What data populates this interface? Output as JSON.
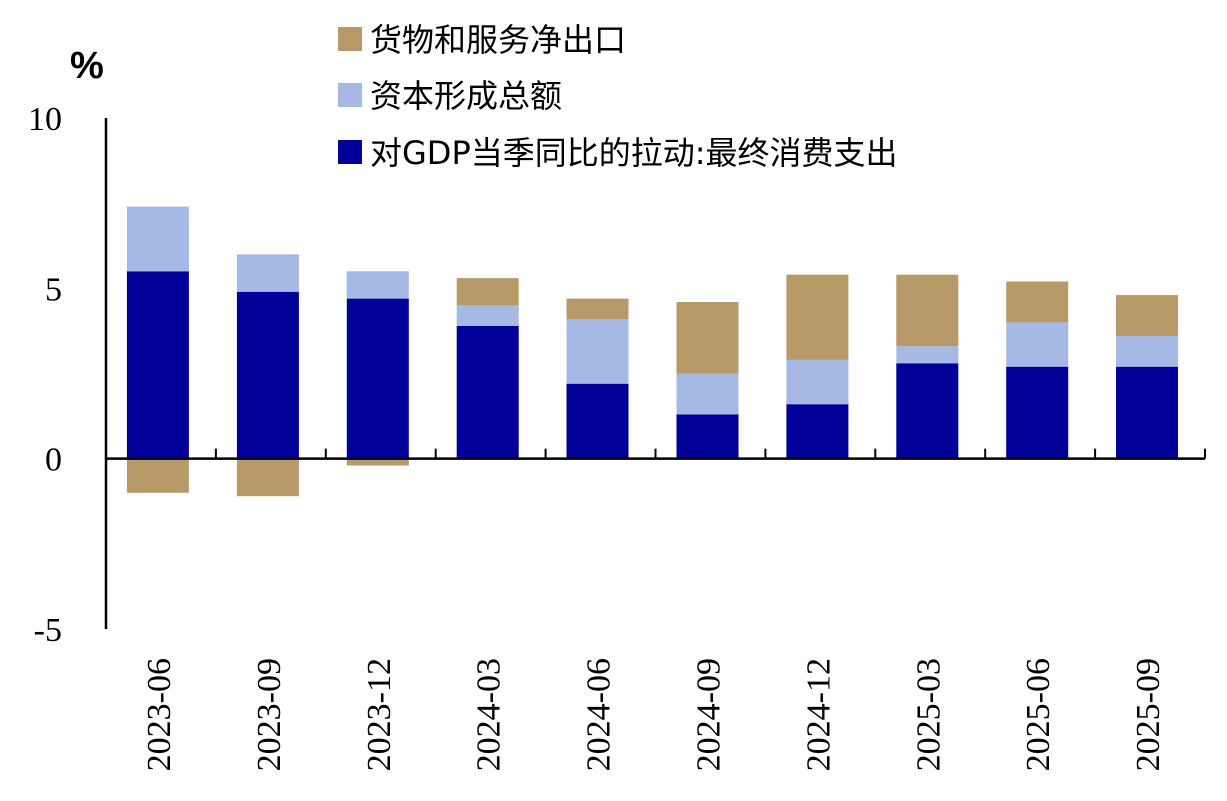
{
  "chart_data": {
    "type": "bar",
    "stacked": true,
    "unit_label": "%",
    "categories": [
      "2023-06",
      "2023-09",
      "2023-12",
      "2024-03",
      "2024-06",
      "2024-09",
      "2024-12",
      "2025-03",
      "2025-06",
      "2025-09"
    ],
    "series": [
      {
        "name": "对GDP当季同比的拉动:最终消费支出",
        "color": "#000099",
        "values": [
          5.5,
          4.9,
          4.7,
          3.9,
          2.2,
          1.3,
          1.6,
          2.8,
          2.7,
          2.7
        ]
      },
      {
        "name": "资本形成总额",
        "color": "#a6b8e4",
        "values": [
          1.9,
          1.1,
          0.8,
          0.6,
          1.9,
          1.2,
          1.3,
          0.5,
          1.3,
          0.9
        ]
      },
      {
        "name": "货物和服务净出口",
        "color": "#b89968",
        "values": [
          -1.0,
          -1.1,
          -0.2,
          0.8,
          0.6,
          2.1,
          2.5,
          2.1,
          1.2,
          1.2
        ]
      }
    ],
    "legend_order": [
      2,
      1,
      0
    ],
    "ylim": [
      -5,
      10
    ],
    "yticks": [
      -5,
      0,
      5,
      10
    ],
    "xlabel": "",
    "ylabel": "",
    "legend_position": "top"
  }
}
